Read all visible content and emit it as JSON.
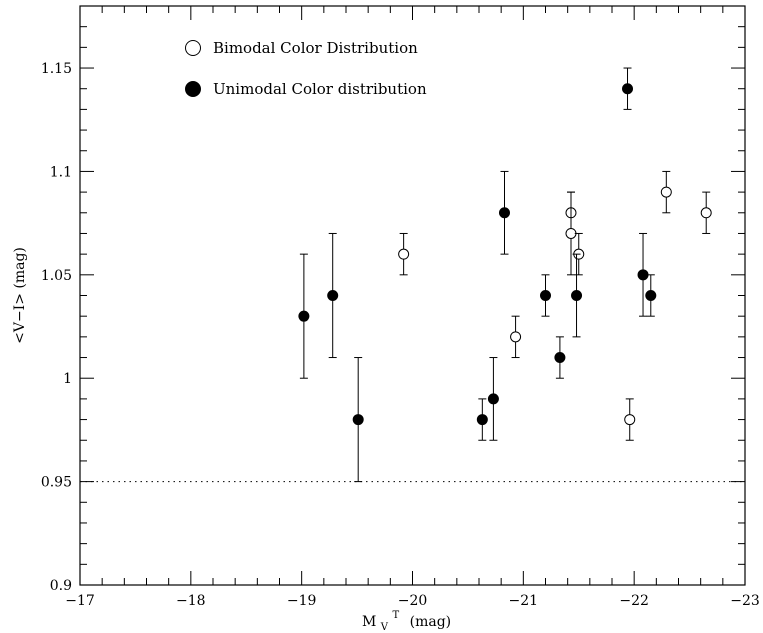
{
  "chart_data": {
    "type": "scatter",
    "title": "",
    "xlabel": "M",
    "xlabel_sub": "V",
    "xlabel_sup": "T",
    "xlabel_unit": "(mag)",
    "ylabel": "<V−I> (mag)",
    "xlim": [
      -17,
      -23
    ],
    "ylim": [
      0.9,
      1.18
    ],
    "x_ticks": [
      -17,
      -18,
      -19,
      -20,
      -21,
      -22,
      -23
    ],
    "x_tick_labels": [
      "−17",
      "−18",
      "−19",
      "−20",
      "−21",
      "−22",
      "−23"
    ],
    "y_ticks": [
      0.9,
      0.95,
      1.0,
      1.05,
      1.1,
      1.15
    ],
    "y_tick_labels": [
      "0.9",
      "0.95",
      "1",
      "1.05",
      "1.1",
      "1.15"
    ],
    "reference_line": {
      "y": 0.95,
      "style": "dotted"
    },
    "legend_position": "top-left",
    "series": [
      {
        "name": "Bimodal Color Distribution",
        "marker": "open-circle",
        "points": [
          {
            "x": -19.92,
            "y": 1.06,
            "yerr": 0.01
          },
          {
            "x": -20.93,
            "y": 1.02,
            "yerr": 0.01
          },
          {
            "x": -21.43,
            "y": 1.08,
            "yerr": 0.01
          },
          {
            "x": -21.43,
            "y": 1.07,
            "yerr": 0.02
          },
          {
            "x": -21.5,
            "y": 1.06,
            "yerr": 0.01
          },
          {
            "x": -21.96,
            "y": 0.98,
            "yerr": 0.01
          },
          {
            "x": -22.29,
            "y": 1.09,
            "yerr": 0.01
          },
          {
            "x": -22.65,
            "y": 1.08,
            "yerr": 0.01
          }
        ]
      },
      {
        "name": "Unimodal Color distribution",
        "marker": "filled-circle",
        "points": [
          {
            "x": -19.02,
            "y": 1.03,
            "yerr": 0.03
          },
          {
            "x": -19.28,
            "y": 1.04,
            "yerr": 0.03
          },
          {
            "x": -19.51,
            "y": 0.98,
            "yerr": 0.03
          },
          {
            "x": -20.63,
            "y": 0.98,
            "yerr": 0.01
          },
          {
            "x": -20.73,
            "y": 0.99,
            "yerr": 0.02
          },
          {
            "x": -20.83,
            "y": 1.08,
            "yerr": 0.02
          },
          {
            "x": -21.2,
            "y": 1.04,
            "yerr": 0.01
          },
          {
            "x": -21.33,
            "y": 1.01,
            "yerr": 0.01
          },
          {
            "x": -21.48,
            "y": 1.04,
            "yerr": 0.02
          },
          {
            "x": -21.94,
            "y": 1.14,
            "yerr": 0.01
          },
          {
            "x": -22.08,
            "y": 1.05,
            "yerr": 0.02
          },
          {
            "x": -22.15,
            "y": 1.04,
            "yerr": 0.01
          }
        ]
      }
    ]
  }
}
